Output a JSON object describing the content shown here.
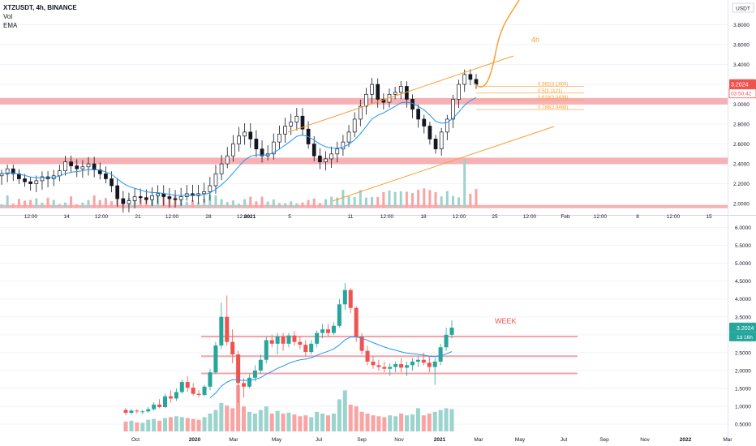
{
  "colors": {
    "up": "#26a69a",
    "down": "#ef5350",
    "volume_up": "#9bd3cd",
    "volume_down": "#f7a4a3",
    "zone": "#f4a3a8",
    "channel": "#f7a034",
    "ema": "#2196f3",
    "fib": "#f7a034",
    "price_tag": "#ef5350",
    "price_tag_week": "#26a69a",
    "grid": "#f0f3fa",
    "axis_text": "#131722"
  },
  "top_pane": {
    "header": {
      "symbol_line": "XTZUSDT, 4h, BINANCE",
      "vol_label": "Vol",
      "ema_label": "EMA"
    },
    "currency_badge": "USDT",
    "partial_top_label": "4",
    "price_labels": [
      "3.8000",
      "3.6000",
      "3.4000",
      "3.0000",
      "2.8000",
      "2.6000",
      "2.4000",
      "2.2000",
      "2.0000"
    ],
    "last_price": "3.2024",
    "countdown": "03:50:42",
    "time_labels": [
      "12:00",
      "14",
      "12:00",
      "21",
      "12:00",
      "28",
      "12:00",
      "2021",
      "5",
      "11",
      "12:00",
      "18",
      "12:00",
      "25",
      "12:00",
      "Feb",
      "12:00",
      "8",
      "12:00",
      "15"
    ],
    "timeframe_annotation": "4h",
    "fib_levels": [
      "0.382(3.1804)",
      "0.5(3.1121)",
      "0.618(3.0439)",
      "0.786(2.9468)"
    ]
  },
  "bottom_pane": {
    "price_labels": [
      "6.0000",
      "5.5000",
      "5.0000",
      "4.5000",
      "4.0000",
      "3.5000",
      "2.5000",
      "2.0000",
      "1.5000",
      "1.0000",
      "0.5000"
    ],
    "last_price": "3.2024",
    "countdown": "1d 16h",
    "time_labels": [
      "Oct",
      "2020",
      "Mar",
      "May",
      "Jul",
      "Sep",
      "Nov",
      "2021",
      "Mar",
      "May",
      "Jul",
      "Sep",
      "Nov",
      "2022",
      "Mar"
    ],
    "timeframe_annotation": "WEEK"
  },
  "chart_data": [
    {
      "type": "candlestick",
      "timeframe": "4h",
      "symbol": "XTZUSDT",
      "y_unit": "USDT",
      "x_range": [
        "Dec 10 2020",
        "Feb 16 2021"
      ],
      "ylim": [
        1.96,
        4.0
      ],
      "close_series": [
        2.3,
        2.35,
        2.3,
        2.25,
        2.22,
        2.2,
        2.23,
        2.27,
        2.25,
        2.28,
        2.33,
        2.42,
        2.38,
        2.35,
        2.37,
        2.4,
        2.34,
        2.3,
        2.25,
        2.18,
        2.05,
        2.0,
        2.03,
        2.07,
        2.06,
        2.04,
        2.08,
        2.1,
        2.07,
        2.05,
        2.04,
        2.07,
        2.1,
        2.08,
        2.1,
        2.12,
        2.18,
        2.3,
        2.4,
        2.48,
        2.6,
        2.68,
        2.72,
        2.65,
        2.55,
        2.48,
        2.5,
        2.62,
        2.7,
        2.78,
        2.82,
        2.88,
        2.75,
        2.6,
        2.48,
        2.42,
        2.45,
        2.5,
        2.55,
        2.62,
        2.72,
        2.85,
        2.98,
        3.1,
        3.2,
        3.05,
        3.02,
        3.1,
        3.12,
        3.18,
        3.05,
        2.95,
        2.85,
        2.78,
        2.65,
        2.55,
        2.72,
        2.85,
        3.05,
        3.2,
        3.3,
        3.25,
        3.2
      ],
      "horizontal_zones": [
        3.03,
        2.43,
        1.97
      ],
      "fib_retracements": {
        "0.382": 3.1804,
        "0.5": 3.1121,
        "0.618": 3.0439,
        "0.786": 2.9468
      },
      "last_price": 3.2024,
      "indicators": [
        "Vol",
        "EMA"
      ]
    },
    {
      "type": "candlestick",
      "timeframe": "1W",
      "symbol": "XTZUSDT",
      "y_unit": "USDT",
      "x_range": [
        "Sep 2019",
        "Mar 2022"
      ],
      "ylim": [
        0.3,
        6.1
      ],
      "ohlc": [
        [
          0.9,
          0.95,
          0.75,
          0.82
        ],
        [
          0.82,
          0.92,
          0.78,
          0.88
        ],
        [
          0.88,
          0.92,
          0.8,
          0.86
        ],
        [
          0.86,
          0.9,
          0.78,
          0.86
        ],
        [
          0.86,
          0.98,
          0.82,
          0.92
        ],
        [
          0.92,
          1.12,
          0.88,
          1.05
        ],
        [
          1.05,
          1.2,
          0.95,
          0.98
        ],
        [
          0.98,
          1.35,
          0.95,
          1.28
        ],
        [
          1.28,
          1.45,
          1.1,
          1.22
        ],
        [
          1.22,
          1.5,
          1.15,
          1.4
        ],
        [
          1.4,
          1.75,
          1.35,
          1.68
        ],
        [
          1.68,
          1.85,
          1.4,
          1.52
        ],
        [
          1.52,
          1.65,
          1.3,
          1.35
        ],
        [
          1.35,
          1.45,
          1.25,
          1.32
        ],
        [
          1.32,
          1.6,
          1.28,
          1.55
        ],
        [
          1.55,
          2.05,
          1.45,
          1.95
        ],
        [
          1.95,
          2.8,
          1.9,
          2.7
        ],
        [
          2.7,
          3.9,
          2.6,
          3.5
        ],
        [
          3.5,
          4.1,
          2.7,
          2.8
        ],
        [
          2.8,
          3.15,
          2.2,
          2.45
        ],
        [
          2.45,
          2.55,
          1.1,
          1.65
        ],
        [
          1.65,
          1.8,
          1.25,
          1.55
        ],
        [
          1.55,
          1.9,
          1.5,
          1.8
        ],
        [
          1.8,
          2.15,
          1.7,
          2.0
        ],
        [
          2.0,
          2.45,
          1.9,
          2.3
        ],
        [
          2.3,
          2.95,
          2.2,
          2.85
        ],
        [
          2.85,
          3.0,
          2.65,
          2.75
        ],
        [
          2.75,
          3.05,
          2.45,
          2.95
        ],
        [
          2.95,
          3.05,
          2.55,
          2.75
        ],
        [
          2.75,
          3.05,
          2.65,
          2.98
        ],
        [
          2.98,
          3.1,
          2.7,
          2.8
        ],
        [
          2.8,
          2.95,
          2.6,
          2.72
        ],
        [
          2.72,
          2.85,
          2.4,
          2.52
        ],
        [
          2.52,
          2.85,
          2.45,
          2.75
        ],
        [
          2.75,
          3.12,
          2.65,
          3.05
        ],
        [
          3.05,
          3.3,
          2.9,
          3.15
        ],
        [
          3.15,
          3.3,
          2.95,
          3.05
        ],
        [
          3.05,
          3.35,
          3.0,
          3.25
        ],
        [
          3.25,
          4.0,
          3.2,
          3.85
        ],
        [
          3.85,
          4.45,
          3.7,
          4.25
        ],
        [
          4.25,
          4.3,
          3.6,
          3.75
        ],
        [
          3.75,
          3.8,
          2.8,
          2.95
        ],
        [
          2.95,
          3.05,
          2.45,
          2.55
        ],
        [
          2.55,
          2.7,
          2.15,
          2.25
        ],
        [
          2.25,
          2.4,
          2.05,
          2.15
        ],
        [
          2.15,
          2.3,
          2.0,
          2.1
        ],
        [
          2.1,
          2.25,
          1.95,
          2.05
        ],
        [
          2.05,
          2.2,
          1.85,
          2.1
        ],
        [
          2.1,
          2.25,
          1.95,
          2.18
        ],
        [
          2.18,
          2.35,
          1.95,
          2.08
        ],
        [
          2.08,
          2.25,
          1.85,
          2.15
        ],
        [
          2.15,
          2.35,
          2.0,
          2.25
        ],
        [
          2.25,
          2.4,
          2.1,
          2.3
        ],
        [
          2.3,
          2.5,
          2.15,
          2.22
        ],
        [
          2.22,
          2.4,
          1.95,
          2.1
        ],
        [
          2.1,
          2.35,
          1.6,
          2.25
        ],
        [
          2.25,
          2.75,
          2.15,
          2.65
        ],
        [
          2.65,
          3.2,
          2.55,
          3.0
        ],
        [
          3.0,
          3.4,
          2.9,
          3.2
        ]
      ],
      "volumes": [
        0.55,
        0.6,
        0.5,
        0.48,
        0.65,
        0.7,
        0.6,
        0.75,
        0.8,
        0.85,
        0.8,
        0.75,
        0.7,
        0.65,
        0.8,
        1.0,
        1.2,
        1.6,
        1.45,
        1.3,
        2.6,
        1.4,
        1.1,
        1.0,
        1.2,
        1.4,
        1.0,
        1.15,
        1.0,
        1.05,
        0.95,
        0.85,
        0.9,
        0.8,
        1.1,
        1.0,
        0.9,
        1.0,
        1.8,
        2.3,
        1.5,
        1.4,
        1.1,
        1.0,
        0.9,
        0.85,
        0.8,
        0.9,
        0.85,
        1.0,
        0.9,
        0.95,
        1.3,
        0.9,
        1.0,
        1.1,
        1.2,
        1.3,
        1.25
      ],
      "horizontal_zones": [
        2.95,
        2.4,
        1.92
      ],
      "last_price": 3.2024
    }
  ]
}
